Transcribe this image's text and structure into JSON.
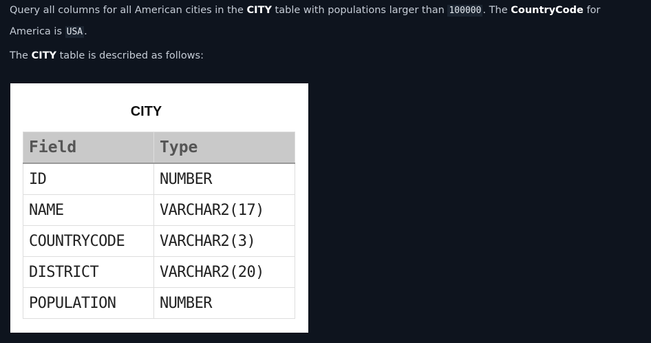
{
  "problem": {
    "line1": {
      "t1": "Query all columns for all American cities in the ",
      "k1": "CITY",
      "t2": " table with populations larger than ",
      "c1": "100000",
      "t3": ". The ",
      "k2": "CountryCode",
      "t4": " for America is ",
      "c2": "USA",
      "t5": "."
    },
    "line2": {
      "t1": "The ",
      "k1": "CITY",
      "t2": " table is described as follows:"
    }
  },
  "figure": {
    "title": "CITY",
    "headers": [
      "Field",
      "Type"
    ],
    "rows": [
      [
        "ID",
        "NUMBER"
      ],
      [
        "NAME",
        "VARCHAR2(17)"
      ],
      [
        "COUNTRYCODE",
        "VARCHAR2(3)"
      ],
      [
        "DISTRICT",
        "VARCHAR2(20)"
      ],
      [
        "POPULATION",
        "NUMBER"
      ]
    ]
  }
}
